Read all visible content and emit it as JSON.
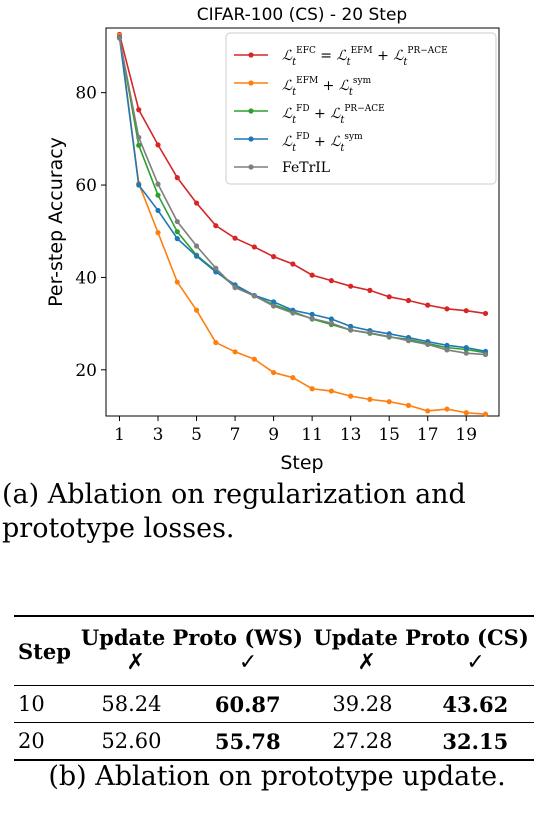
{
  "chart_data": {
    "type": "line",
    "title": "CIFAR-100 (CS) - 20 Step",
    "xlabel": "Step",
    "ylabel": "Per-step Accuracy",
    "xlim": [
      0.3,
      20.7
    ],
    "ylim": [
      10,
      94
    ],
    "xticks": [
      1,
      3,
      5,
      7,
      9,
      11,
      13,
      15,
      17,
      19
    ],
    "yticks": [
      20,
      40,
      60,
      80
    ],
    "grid": false,
    "legend_position": "top-right",
    "x": [
      1,
      2,
      3,
      4,
      5,
      6,
      7,
      8,
      9,
      10,
      11,
      12,
      13,
      14,
      15,
      16,
      17,
      18,
      19,
      20
    ],
    "series": [
      {
        "name": "EFC = EFM + PR-ACE",
        "color": "#d62728",
        "values": [
          92.6,
          76.3,
          68.7,
          61.6,
          56.1,
          51.2,
          48.5,
          46.6,
          44.5,
          42.9,
          40.5,
          39.3,
          38.1,
          37.2,
          35.8,
          35.0,
          34.0,
          33.2,
          32.8,
          32.2
        ]
      },
      {
        "name": "EFM + sym",
        "color": "#ff7f0e",
        "values": [
          92.4,
          60.3,
          49.7,
          39.0,
          32.9,
          25.9,
          23.9,
          22.3,
          19.4,
          18.3,
          15.9,
          15.4,
          14.3,
          13.6,
          13.1,
          12.3,
          11.1,
          11.5,
          10.7,
          10.4
        ]
      },
      {
        "name": "FD + PR-ACE",
        "color": "#2ca02c",
        "values": [
          91.9,
          68.6,
          57.8,
          49.9,
          44.8,
          41.4,
          38.0,
          36.0,
          34.1,
          32.6,
          31.0,
          29.8,
          28.6,
          27.9,
          27.1,
          26.6,
          25.7,
          24.8,
          24.4,
          23.7
        ]
      },
      {
        "name": "FD + sym",
        "color": "#1f77b4",
        "values": [
          92.0,
          60.0,
          54.5,
          48.4,
          44.6,
          41.2,
          38.4,
          36.1,
          34.7,
          32.9,
          32.0,
          31.0,
          29.4,
          28.5,
          27.8,
          27.0,
          26.1,
          25.3,
          24.8,
          24.0
        ]
      },
      {
        "name": "FeTrIL",
        "color": "#7f7f7f",
        "values": [
          91.8,
          70.3,
          60.2,
          52.1,
          46.8,
          42.0,
          37.8,
          36.0,
          33.8,
          32.3,
          31.1,
          30.1,
          28.6,
          28.0,
          27.2,
          26.3,
          25.5,
          24.3,
          23.6,
          23.3
        ]
      }
    ]
  },
  "captions": {
    "a": "(a) Ablation on regularization and prototype losses.",
    "b": "(b) Ablation on prototype update."
  },
  "table": {
    "col_step": "Step",
    "col_ws": "Update Proto (WS)",
    "col_cs": "Update Proto (CS)",
    "mark_no": "✗",
    "mark_yes": "✓",
    "rows": [
      {
        "step": "10",
        "ws_no": "58.24",
        "ws_yes": "60.87",
        "cs_no": "39.28",
        "cs_yes": "43.62"
      },
      {
        "step": "20",
        "ws_no": "52.60",
        "ws_yes": "55.78",
        "cs_no": "27.28",
        "cs_yes": "32.15"
      }
    ]
  }
}
